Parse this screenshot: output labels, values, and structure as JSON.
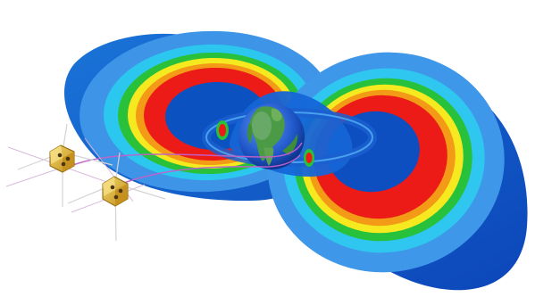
{
  "scene": {
    "subject": "radiation-belts-with-twin-spacecraft",
    "background_color": "#ffffff"
  },
  "colors": {
    "outer_blue_dark": "#0b46b8",
    "outer_blue": "#1f73d8",
    "light_blue": "#4aa6ea",
    "cyan": "#33c8f0",
    "green": "#27c23c",
    "yellow": "#f6e91f",
    "orange": "#f39a16",
    "red": "#ec1b17",
    "earth_ocean": "#1f58c8",
    "earth_land": "#4b9a45",
    "spacecraft_gold": "#d9ad2a",
    "orbit_line": "#c062c9"
  },
  "icons": {
    "earth": "earth-globe-icon",
    "spacecraft": "satellite-icon"
  }
}
